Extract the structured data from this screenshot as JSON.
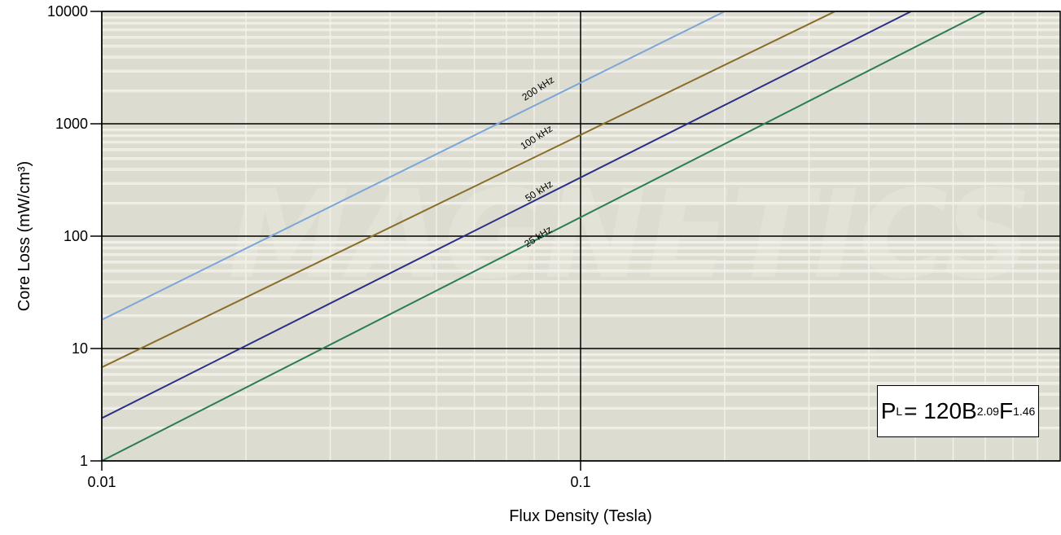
{
  "chart_data": {
    "type": "line",
    "xlabel": "Flux Density (Tesla)",
    "ylabel": "Core Loss (mW/cm³)",
    "x_scale": "log",
    "y_scale": "log",
    "xlim": [
      0.01,
      0.7
    ],
    "ylim": [
      1,
      10000
    ],
    "x_ticks": [
      0.01,
      0.1
    ],
    "x_tick_labels": [
      "0.01",
      "0.1"
    ],
    "y_ticks": [
      1,
      10,
      100,
      1000,
      10000
    ],
    "y_tick_labels": [
      "1",
      "10",
      "100",
      "1000",
      "10000"
    ],
    "grid": true,
    "series": [
      {
        "name": "200 kHz",
        "color": "#7ba7d8",
        "x": [
          0.01,
          0.2
        ],
        "y": [
          18,
          10000
        ]
      },
      {
        "name": "100 kHz",
        "color": "#8b6d2a",
        "x": [
          0.01,
          0.34
        ],
        "y": [
          6.8,
          10000
        ]
      },
      {
        "name": "50 kHz",
        "color": "#2a2f86",
        "x": [
          0.01,
          0.49
        ],
        "y": [
          2.4,
          10000
        ]
      },
      {
        "name": "25 kHz",
        "color": "#2a7d57",
        "x": [
          0.01,
          0.7
        ],
        "y": [
          1,
          10000
        ]
      }
    ],
    "formula": {
      "base": "P",
      "sub": "L",
      "text": "= 120B",
      "exp1": "2.09",
      "mid": "F",
      "exp2": "1.46"
    },
    "background_color": "#dddcd0",
    "watermark": "MAGNETICS"
  }
}
